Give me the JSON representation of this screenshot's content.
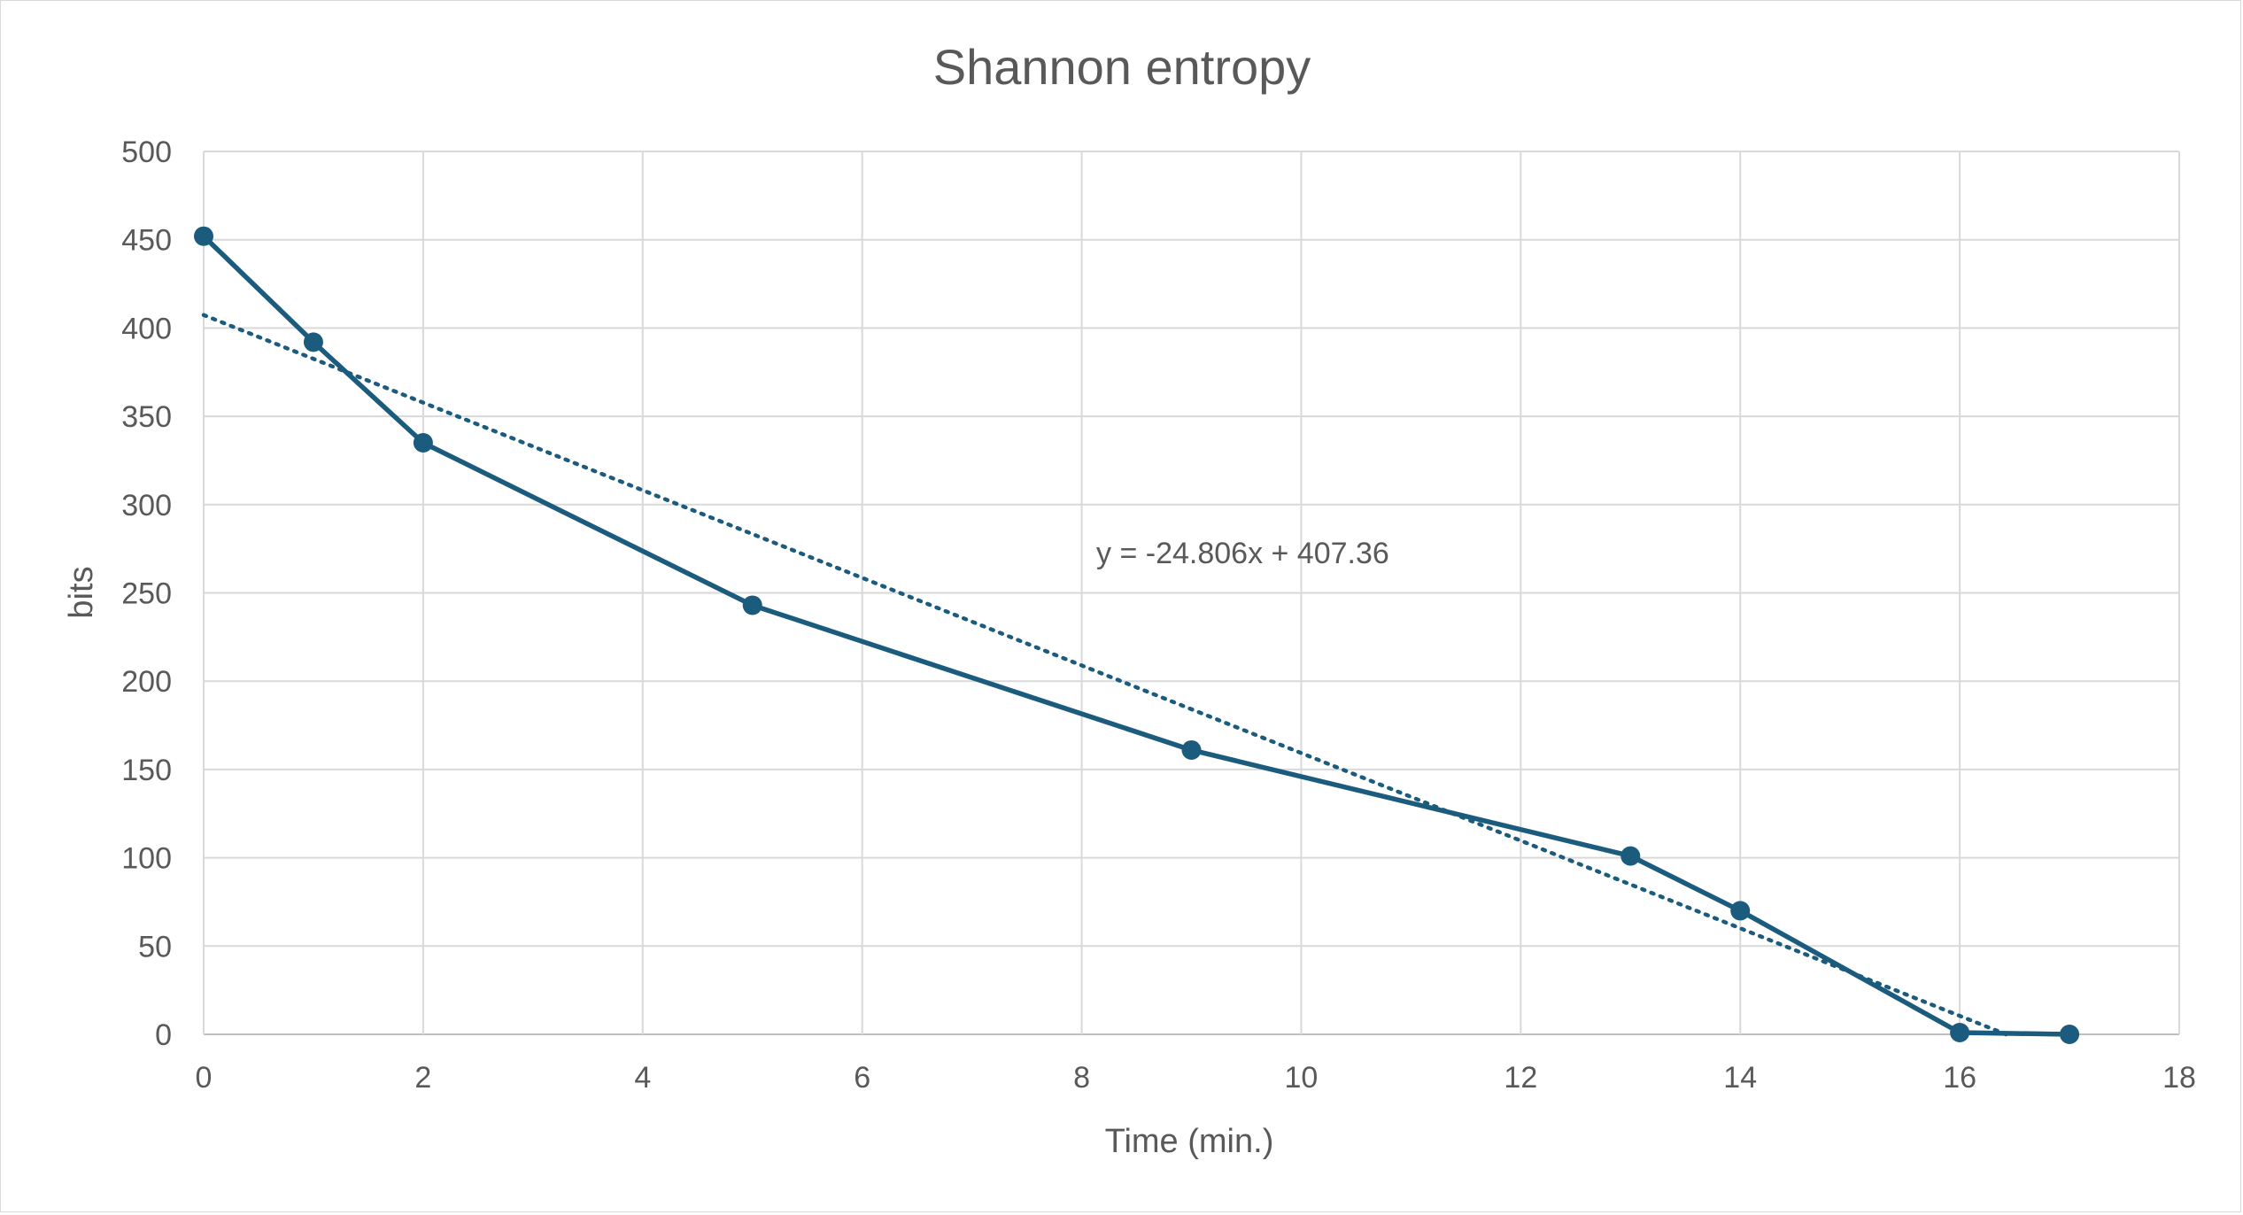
{
  "chart_data": {
    "type": "line",
    "title": "Shannon entropy",
    "xlabel": "Time (min.)",
    "ylabel": "bits",
    "xlim": [
      0,
      18
    ],
    "ylim": [
      0,
      500
    ],
    "x_ticks": [
      "0",
      "2",
      "4",
      "6",
      "8",
      "10",
      "12",
      "14",
      "16",
      "18"
    ],
    "y_ticks": [
      "0",
      "50",
      "100",
      "150",
      "200",
      "250",
      "300",
      "350",
      "400",
      "450",
      "500"
    ],
    "grid": true,
    "legend": "none",
    "series": [
      {
        "x": [
          0,
          1,
          2,
          5,
          9,
          13,
          14,
          16,
          17
        ],
        "y": [
          452,
          392,
          335,
          243,
          161,
          101,
          70,
          1,
          0
        ],
        "color": "#1b5c7e",
        "markers": true
      }
    ],
    "trendline": {
      "kind": "linear",
      "slope": -24.806,
      "intercept": 407.36,
      "style": "dotted",
      "color": "#1b5c7e",
      "equation_label": "y = -24.806x + 407.36"
    }
  }
}
